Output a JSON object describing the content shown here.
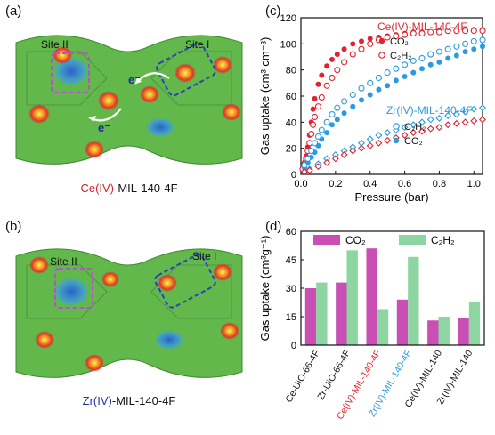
{
  "panels": {
    "a": {
      "label": "(a)",
      "site_left": "Site II",
      "site_right": "Site I",
      "electron_label_1": "e⁻",
      "electron_label_2": "e⁻",
      "caption_metal": "Ce(IV)",
      "caption_rest": "-MIL-140-4F"
    },
    "b": {
      "label": "(b)",
      "site_left": "Site II",
      "site_right": "Site I",
      "caption_metal": "Zr(IV)",
      "caption_rest": "-MIL-140-4F"
    },
    "c": {
      "label": "(c)"
    },
    "d": {
      "label": "(d)"
    }
  },
  "colors": {
    "co2": "#e4222f",
    "c2h2": "#2a9be0",
    "bar_co2": "#c94fb5",
    "bar_c2h2": "#8dd5a1",
    "site_left_box": "#b84fd1",
    "site_right_box": "#2c3fc0",
    "surface_green": "#62b84a",
    "ce_red": "#d21f2b",
    "zr_blue": "#2a2fa8"
  },
  "chart_data": [
    {
      "id": "c",
      "type": "scatter",
      "xlabel": "Pressure (bar)",
      "ylabel": "Gas uptake (cm³ cm⁻³)",
      "xlim": [
        0,
        1.05
      ],
      "ylim": [
        0,
        120
      ],
      "xticks": [
        "0.0",
        "0.2",
        "0.4",
        "0.6",
        "0.8",
        "1.0"
      ],
      "yticks": [
        "0",
        "20",
        "40",
        "60",
        "80",
        "100",
        "120"
      ],
      "groups": [
        {
          "title": "Ce(IV)-MIL-140-4F",
          "color": "#e4222f",
          "entries": [
            "CO₂",
            "C₂H₂"
          ]
        },
        {
          "title": "Zr(IV)-MIL-140-4F",
          "color": "#2a9be0",
          "entries": [
            "C₂H₂",
            "CO₂"
          ]
        }
      ],
      "series": [
        {
          "color": "#e4222f",
          "style": "solid",
          "x": [
            0.01,
            0.02,
            0.03,
            0.04,
            0.05,
            0.06,
            0.07,
            0.08,
            0.1,
            0.12,
            0.15,
            0.18,
            0.21,
            0.25,
            0.3,
            0.35,
            0.4,
            0.45,
            0.5,
            0.55,
            0.6,
            0.65,
            0.7,
            0.75,
            0.8,
            0.85,
            0.9,
            0.95,
            1.0,
            1.05
          ],
          "y": [
            5,
            9,
            14,
            21,
            30,
            40,
            50,
            58,
            69,
            76,
            83,
            88,
            92,
            96,
            100,
            102,
            104,
            105,
            106,
            107,
            108,
            109,
            109,
            109,
            110,
            110,
            110,
            111,
            111,
            111
          ]
        },
        {
          "color": "#e4222f",
          "style": "open",
          "x": [
            0.01,
            0.02,
            0.03,
            0.04,
            0.05,
            0.06,
            0.07,
            0.08,
            0.1,
            0.12,
            0.15,
            0.18,
            0.21,
            0.25,
            0.3,
            0.35,
            0.4,
            0.45,
            0.5,
            0.55,
            0.6,
            0.65,
            0.7,
            0.75,
            0.8,
            0.85,
            0.9,
            0.95,
            1.0,
            1.05
          ],
          "y": [
            4,
            8,
            12,
            18,
            24,
            31,
            38,
            44,
            52,
            59,
            68,
            74,
            80,
            86,
            92,
            96,
            100,
            103,
            105,
            106,
            107,
            108,
            108,
            109,
            109,
            110,
            110,
            110,
            110,
            110
          ]
        },
        {
          "color": "#2a9be0",
          "style": "solid",
          "x": [
            0.02,
            0.04,
            0.06,
            0.08,
            0.1,
            0.12,
            0.15,
            0.18,
            0.21,
            0.25,
            0.3,
            0.35,
            0.4,
            0.45,
            0.5,
            0.55,
            0.6,
            0.65,
            0.7,
            0.75,
            0.8,
            0.85,
            0.9,
            0.95,
            1.0,
            1.05
          ],
          "y": [
            5,
            9,
            13,
            17,
            22,
            27,
            32,
            38,
            42,
            47,
            52,
            57,
            61,
            65,
            68,
            72,
            75,
            78,
            81,
            84,
            86,
            89,
            91,
            94,
            96,
            98
          ]
        },
        {
          "color": "#2a9be0",
          "style": "open",
          "x": [
            0.02,
            0.04,
            0.06,
            0.08,
            0.1,
            0.12,
            0.15,
            0.18,
            0.21,
            0.25,
            0.3,
            0.35,
            0.4,
            0.45,
            0.5,
            0.55,
            0.6,
            0.65,
            0.7,
            0.75,
            0.8,
            0.85,
            0.9,
            0.95,
            1.0,
            1.05
          ],
          "y": [
            7,
            12,
            18,
            24,
            29,
            34,
            40,
            46,
            51,
            56,
            61,
            66,
            70,
            74,
            78,
            81,
            84,
            87,
            89,
            92,
            94,
            96,
            98,
            100,
            102,
            103
          ]
        },
        {
          "color": "#2a9be0",
          "style": "half",
          "x": [
            0.02,
            0.05,
            0.1,
            0.15,
            0.2,
            0.25,
            0.3,
            0.35,
            0.4,
            0.45,
            0.5,
            0.55,
            0.6,
            0.65,
            0.7,
            0.75,
            0.8,
            0.85,
            0.9,
            0.95,
            1.0,
            1.05
          ],
          "y": [
            2,
            4,
            8,
            12,
            15,
            18,
            21,
            24,
            27,
            30,
            32,
            34,
            36,
            38,
            40,
            42,
            43,
            45,
            46,
            48,
            50,
            51
          ]
        },
        {
          "color": "#e4222f",
          "style": "half",
          "x": [
            0.02,
            0.05,
            0.1,
            0.15,
            0.2,
            0.25,
            0.3,
            0.35,
            0.4,
            0.45,
            0.5,
            0.55,
            0.6,
            0.65,
            0.7,
            0.75,
            0.8,
            0.85,
            0.9,
            0.95,
            1.0,
            1.05
          ],
          "y": [
            2,
            3,
            6,
            9,
            12,
            15,
            18,
            20,
            22,
            24,
            26,
            28,
            30,
            32,
            33,
            35,
            36,
            38,
            39,
            40,
            41,
            42
          ]
        }
      ]
    },
    {
      "id": "d",
      "type": "bar",
      "ylabel": "Gas uptake (cm³g⁻¹)",
      "ylim": [
        0,
        60
      ],
      "yticks": [
        "0",
        "15",
        "30",
        "45",
        "60"
      ],
      "categories": [
        "Ce-UiO-66-4F",
        "Zr-UiO-66-4F",
        "Ce(IV)-MIL-140-4F",
        "Zr(IV)-MIL-140-4F",
        "Ce(IV)-MIL-140",
        "Zr(IV)-MIL-140"
      ],
      "category_colors": [
        "#111111",
        "#111111",
        "#e4222f",
        "#2a9be0",
        "#111111",
        "#111111"
      ],
      "series": [
        {
          "name": "CO₂",
          "color": "#c94fb5",
          "values": [
            30,
            33,
            51,
            24,
            13,
            14.5
          ]
        },
        {
          "name": "C₂H₂",
          "color": "#8dd5a1",
          "values": [
            33,
            50,
            19,
            46.5,
            15,
            23
          ]
        }
      ]
    }
  ]
}
